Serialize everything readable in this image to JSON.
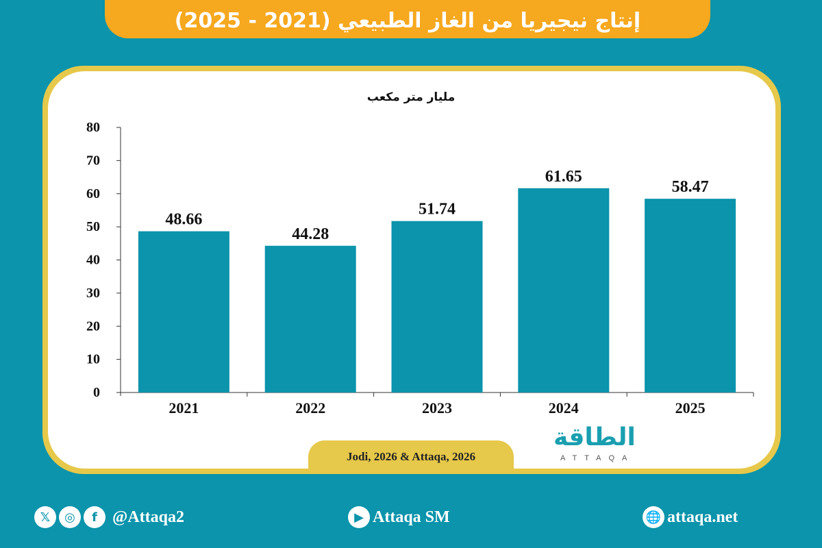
{
  "header": {
    "title": "إنتاج نيجيريا من الغاز الطبيعي (2021 - 2025)"
  },
  "chart_data": {
    "type": "bar",
    "title": "إنتاج نيجيريا من الغاز الطبيعي (2021 - 2025)",
    "ylabel": "مليار متر مكعب",
    "xlabel": "",
    "categories": [
      "2021",
      "2022",
      "2023",
      "2024",
      "2025"
    ],
    "values": [
      48.66,
      44.28,
      51.74,
      61.65,
      58.47
    ],
    "value_labels": [
      "48.66",
      "44.28",
      "51.74",
      "61.65",
      "58.47"
    ],
    "ylim": [
      0,
      80
    ],
    "yticks": [
      "0",
      "10",
      "20",
      "30",
      "40",
      "50",
      "60",
      "70",
      "80"
    ],
    "grid": false,
    "bar_color": "#0b94ab"
  },
  "source": "Jodi, 2026 & Attaqa, 2026",
  "logo": {
    "arabic": "الطاقة",
    "latin": "ATTAQA"
  },
  "footer": {
    "social_handle": "@Attaqa2",
    "youtube": "Attaqa SM",
    "website": "attaqa.net"
  },
  "colors": {
    "background": "#0b94ab",
    "title_bar": "#f6a81e",
    "frame": "#e6c84a"
  }
}
